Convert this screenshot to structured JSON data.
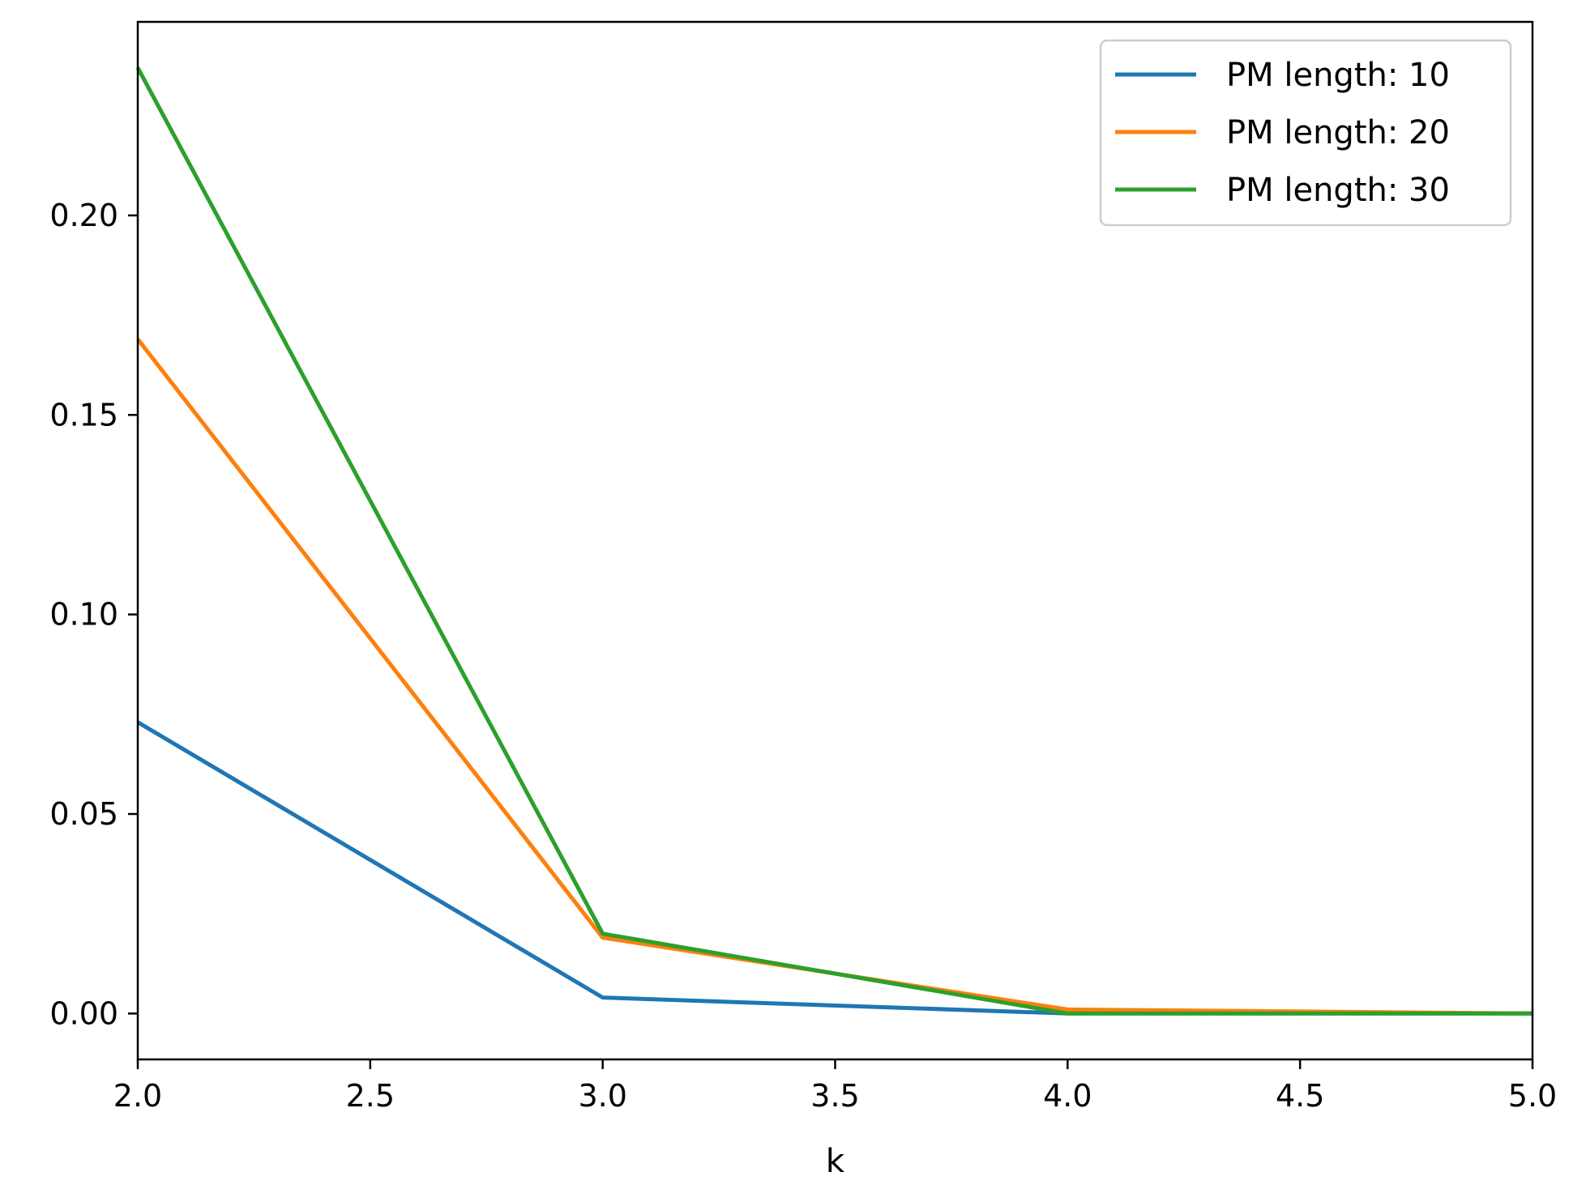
{
  "chart_data": {
    "type": "line",
    "title": "",
    "xlabel": "k",
    "ylabel": "",
    "xlim": [
      2.0,
      5.0
    ],
    "ylim": [
      -0.0115,
      0.2485
    ],
    "x_ticks": [
      2.0,
      2.5,
      3.0,
      3.5,
      4.0,
      4.5,
      5.0
    ],
    "x_tick_labels": [
      "2.0",
      "2.5",
      "3.0",
      "3.5",
      "4.0",
      "4.5",
      "5.0"
    ],
    "y_ticks": [
      0.0,
      0.05,
      0.1,
      0.15,
      0.2
    ],
    "y_tick_labels": [
      "0.00",
      "0.05",
      "0.10",
      "0.15",
      "0.20"
    ],
    "grid": false,
    "legend_position": "top-right",
    "x": [
      2,
      3,
      4,
      5
    ],
    "series": [
      {
        "name": "PM length: 10",
        "color": "#1f77b4",
        "values": [
          0.073,
          0.004,
          0.0,
          0.0
        ]
      },
      {
        "name": "PM length: 20",
        "color": "#ff7f0e",
        "values": [
          0.169,
          0.019,
          0.001,
          0.0
        ]
      },
      {
        "name": "PM length: 30",
        "color": "#2ca02c",
        "values": [
          0.237,
          0.02,
          0.0,
          0.0
        ]
      }
    ]
  }
}
